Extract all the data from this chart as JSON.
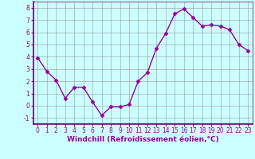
{
  "x": [
    0,
    1,
    2,
    3,
    4,
    5,
    6,
    7,
    8,
    9,
    10,
    11,
    12,
    13,
    14,
    15,
    16,
    17,
    18,
    19,
    20,
    21,
    22,
    23
  ],
  "y": [
    3.9,
    2.8,
    2.1,
    0.6,
    1.5,
    1.5,
    0.3,
    -0.8,
    -0.1,
    -0.1,
    0.1,
    2.0,
    2.7,
    4.7,
    5.9,
    7.5,
    7.9,
    7.2,
    6.5,
    6.6,
    6.5,
    6.2,
    5.0,
    4.5
  ],
  "line_color": "#990099",
  "marker": "D",
  "markersize": 2.5,
  "linewidth": 1.0,
  "xlabel": "Windchill (Refroidissement éolien,°C)",
  "xlabel_color": "#990099",
  "bg_color": "#ccffff",
  "grid_color": "#999999",
  "ylim": [
    -1.5,
    8.5
  ],
  "xlim": [
    -0.5,
    23.5
  ],
  "yticks": [
    -1,
    0,
    1,
    2,
    3,
    4,
    5,
    6,
    7,
    8
  ],
  "xticks": [
    0,
    1,
    2,
    3,
    4,
    5,
    6,
    7,
    8,
    9,
    10,
    11,
    12,
    13,
    14,
    15,
    16,
    17,
    18,
    19,
    20,
    21,
    22,
    23
  ],
  "tick_color": "#990099",
  "tick_fontsize": 5.5,
  "xlabel_fontsize": 6.5,
  "xlabel_fontweight": "bold",
  "spine_color": "#660066",
  "spine_bottom_color": "#660066"
}
